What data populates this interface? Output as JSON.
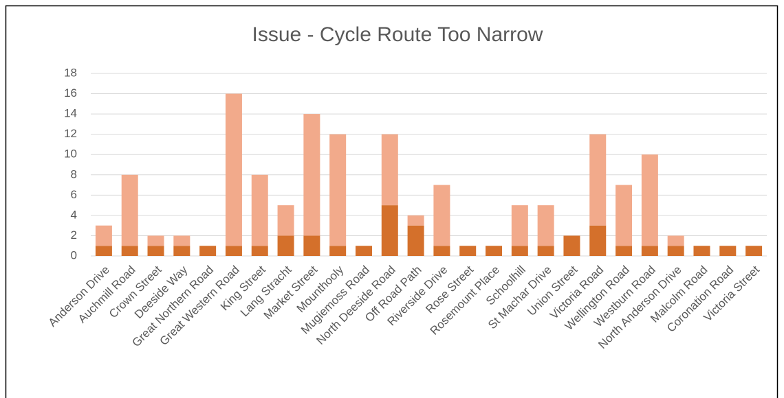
{
  "chart_data": {
    "type": "stacked_bar",
    "title": "Issue - Cycle Route Too Narrow",
    "categories": [
      "Anderson Drive",
      "Auchmill Road",
      "Crown Street",
      "Deeside Way",
      "Great Northern Road",
      "Great Western Road",
      "King Street",
      "Lang Stracht",
      "Market Street",
      "Mounthooly",
      "Mugiemoss Road",
      "North Deeside Road",
      "Off Road Path",
      "Riverside Drive",
      "Rose Street",
      "Rosemount Place",
      "Schoolhill",
      "St Machar Drive",
      "Union Street",
      "Victoria Road",
      "Wellington Road",
      "Westburn Road",
      "North Anderson Drive",
      "Malcolm Road",
      "Coronation Road",
      "Victoria Street"
    ],
    "series": [
      {
        "color": "#d4702b",
        "values": [
          1,
          1,
          1,
          1,
          1,
          1,
          1,
          2,
          2,
          1,
          1,
          5,
          3,
          1,
          1,
          1,
          1,
          1,
          2,
          3,
          1,
          1,
          1,
          1,
          1,
          1
        ]
      },
      {
        "color": "#f2aa8b",
        "values": [
          2,
          7,
          1,
          1,
          0,
          15,
          7,
          3,
          12,
          11,
          0,
          7,
          1,
          6,
          0,
          0,
          4,
          4,
          0,
          9,
          6,
          9,
          1,
          0,
          0,
          0
        ]
      }
    ],
    "ylim": [
      0,
      18
    ],
    "yticks": [
      0,
      2,
      4,
      6,
      8,
      10,
      12,
      14,
      16,
      18
    ],
    "grid": true
  }
}
